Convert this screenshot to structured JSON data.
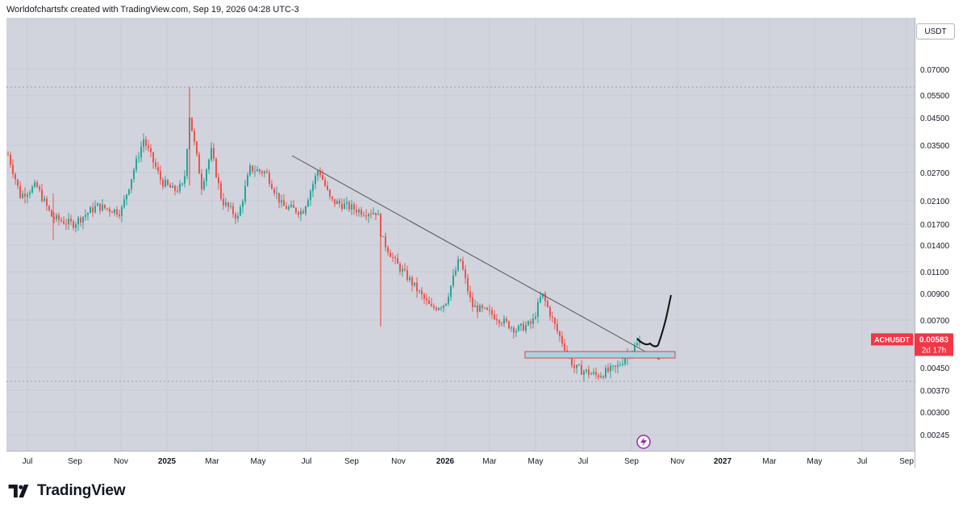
{
  "header": {
    "attribution": "Worldofchartsfx created with TradingView.com, Sep 19, 2026 04:28 UTC-3"
  },
  "price_axis": {
    "currency": "USDT",
    "ticks": [
      "0.07000",
      "0.05500",
      "0.04500",
      "0.03500",
      "0.02700",
      "0.02100",
      "0.01700",
      "0.01400",
      "0.01100",
      "0.00900",
      "0.00700",
      "0.00450",
      "0.00370",
      "0.00300",
      "0.00245"
    ],
    "symbol_label": "ACHUSDT",
    "last_price": "0.00583",
    "countdown": "2d 17h"
  },
  "time_axis": {
    "ticks": [
      "Jul",
      "Sep",
      "Nov",
      "2025",
      "Mar",
      "May",
      "Jul",
      "Sep",
      "Nov",
      "2026",
      "Mar",
      "May",
      "Jul",
      "Sep",
      "Nov",
      "2027",
      "Mar",
      "May",
      "Jul",
      "Sep"
    ]
  },
  "footer": {
    "brand": "TradingView"
  },
  "colors": {
    "up": "#26a69a",
    "down": "#ef5350",
    "background": "#d1d4dc",
    "trendline": "#555555",
    "zone_fill": "#a8d4e0",
    "zone_border": "#f23645",
    "symbol_badge": "#f23645"
  },
  "chart_data": {
    "type": "candlestick",
    "symbol": "ACHUSDT",
    "timeframe": "weekly-ish (approx.)",
    "log_scale": true,
    "ylim": [
      0.0022,
      0.085
    ],
    "x": [
      "2024-07",
      "2024-09",
      "2024-11",
      "2025-01",
      "2025-03",
      "2025-05",
      "2025-07",
      "2025-09",
      "2025-11",
      "2026-01",
      "2026-03",
      "2026-05",
      "2026-07",
      "2026-09"
    ],
    "close_approx": [
      0.022,
      0.019,
      0.024,
      0.03,
      0.026,
      0.025,
      0.022,
      0.019,
      0.011,
      0.012,
      0.0075,
      0.0085,
      0.0044,
      0.0058
    ],
    "last_price": 0.00583,
    "annotations": [
      {
        "type": "descending-trendline",
        "from": [
          "2025-07",
          0.033
        ],
        "to": [
          "2026-10",
          0.0051
        ]
      },
      {
        "type": "support-zone",
        "from": "2026-05",
        "to": "2026-10",
        "low": 0.0049,
        "high": 0.0052
      },
      {
        "type": "dotted-horizontal",
        "value": 0.059
      },
      {
        "type": "dotted-horizontal",
        "value": 0.00395
      },
      {
        "type": "projected-path",
        "points": [
          [
            "2026-09",
            0.0058
          ],
          [
            "2026-10",
            0.0052
          ],
          [
            "2026-10",
            0.0085
          ]
        ]
      }
    ]
  }
}
